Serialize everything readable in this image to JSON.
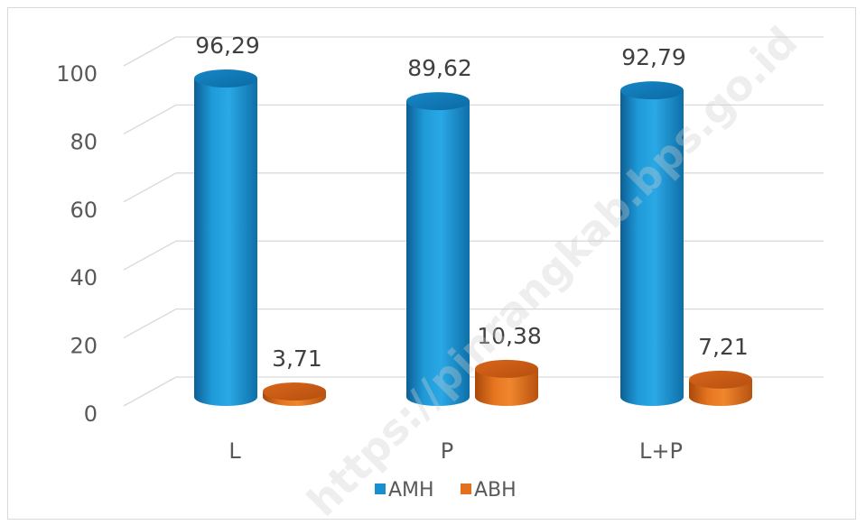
{
  "chart_data": {
    "type": "bar",
    "categories": [
      "L",
      "P",
      "L+P"
    ],
    "series": [
      {
        "name": "AMH",
        "values": [
          96.29,
          89.62,
          92.79
        ],
        "labels": [
          "96,29",
          "89,62",
          "92,79"
        ],
        "color": "#1a8fcf"
      },
      {
        "name": "ABH",
        "values": [
          3.71,
          10.38,
          7.21
        ],
        "labels": [
          "3,71",
          "10,38",
          "7,21"
        ],
        "color": "#e2701c"
      }
    ],
    "ylim": [
      0,
      100
    ],
    "yticks": [
      "0",
      "20",
      "40",
      "60",
      "80",
      "100"
    ],
    "grid": true,
    "legend_position": "bottom",
    "style": "3d-cylinder"
  },
  "watermark": "https://pinrangkab.bps.go.id"
}
